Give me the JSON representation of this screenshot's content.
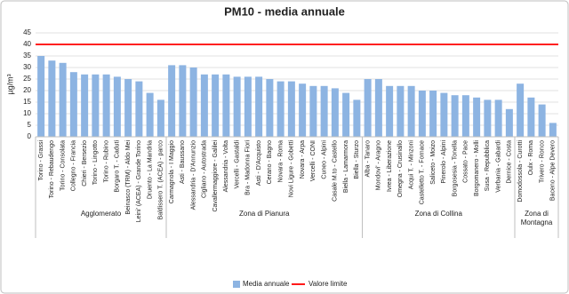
{
  "chart_data": {
    "type": "bar",
    "title": "PM10 - media annuale",
    "y_label": "µg/m³",
    "groups": [
      "Agglomerato",
      "Zona di Pianura",
      "Zona di Collina",
      "Zona di Montagna"
    ],
    "categories": [
      [
        "Torino - Grassi",
        "Torino - Rebaudengo",
        "Torino - Consolata",
        "Collegno - Francia",
        "Chieri - Bersezio",
        "Torino - Lingotto",
        "Torino - Rubino",
        "Borgaro T. - Caduti",
        "Beinasco (TRM) - Aldo Mei",
        "Leini' (ACEA) - Grande Torino",
        "Druento - La Mandria",
        "Baldissero T. (ACEA) - parco"
      ],
      [
        "Carmagnola - I Maggio",
        "Asti - Baussano",
        "Alessandria - D'Annunzio",
        "Cigliano - Autostrada",
        "Cavallermaggiore - Galilei",
        "Alessandria - Volta",
        "Vercelli - Gastaldi",
        "Bra - Madonna Fiori",
        "Asti - D'Acquisto",
        "Cerano - Bagno",
        "Novara - Roma",
        "Novi Ligure - Gobetti",
        "Novara - Arpa",
        "Vercelli - CONI",
        "Cuneo - Alpini",
        "Casale M.to - Castello",
        "Biella - Lamarmora",
        "Biella - Sturzo"
      ],
      [
        "Alba - Tanaro",
        "Mondovi' - Aragno",
        "Ivrea - Liberazione",
        "Omegna - Crusinallo",
        "Acqui T. - Minzoni",
        "Castelletto T. - Fornace",
        "Saliceto - Moizo",
        "Pinerolo - Alpini",
        "Borgosesia - Tonella",
        "Cossato - Pace",
        "Borgomanero - Molli",
        "Susa - Repubblica",
        "Verbania - Gabardi",
        "Dernice - Costa"
      ],
      [
        "Domodossola - Curotti",
        "Oulx - Roma",
        "Trivero - Ronco",
        "Baceno - Alpe Devero"
      ]
    ],
    "series": [
      {
        "name": "Media annuale",
        "color": "#8db4e2",
        "values": [
          [
            35,
            33,
            32,
            28,
            27,
            27,
            27,
            26,
            25,
            24,
            19,
            16
          ],
          [
            31,
            31,
            30,
            27,
            27,
            27,
            26,
            26,
            26,
            25,
            24,
            24,
            23,
            22,
            22,
            21,
            19,
            16
          ],
          [
            25,
            25,
            22,
            22,
            22,
            20,
            20,
            19,
            18,
            18,
            17,
            16,
            16,
            12
          ],
          [
            23,
            17,
            14,
            6
          ]
        ]
      }
    ],
    "reference_line": {
      "name": "Valore limite",
      "value": 40,
      "color": "#ff0000"
    },
    "ylim": [
      0,
      45
    ],
    "yticks": [
      0,
      5,
      10,
      15,
      20,
      25,
      30,
      35,
      40,
      45
    ],
    "grid": true
  }
}
